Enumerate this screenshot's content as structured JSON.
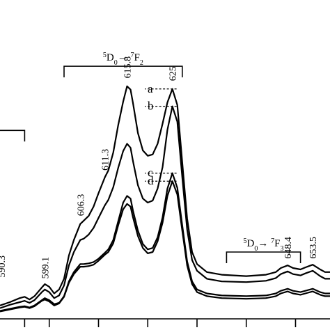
{
  "chart_data": {
    "type": "line",
    "x_axis": {
      "xlim": [
        590,
        657
      ]
    },
    "series": [
      {
        "id": "a",
        "points": [
          [
            590,
            20
          ],
          [
            592,
            25
          ],
          [
            594,
            31
          ],
          [
            595,
            33
          ],
          [
            596,
            29
          ],
          [
            597,
            34
          ],
          [
            598.5,
            47
          ],
          [
            599.1,
            52
          ],
          [
            600,
            48
          ],
          [
            601,
            38
          ],
          [
            602,
            44
          ],
          [
            603,
            60
          ],
          [
            604,
            95
          ],
          [
            605,
            118
          ],
          [
            606.3,
            142
          ],
          [
            607,
            147
          ],
          [
            608,
            154
          ],
          [
            609,
            168
          ],
          [
            610,
            188
          ],
          [
            611.3,
            212
          ],
          [
            612,
            222
          ],
          [
            613,
            249
          ],
          [
            614,
            290
          ],
          [
            615,
            325
          ],
          [
            615.8,
            348
          ],
          [
            616.5,
            343
          ],
          [
            617,
            323
          ],
          [
            618,
            278
          ],
          [
            619,
            252
          ],
          [
            620,
            244
          ],
          [
            621,
            246
          ],
          [
            622,
            262
          ],
          [
            623,
            292
          ],
          [
            624,
            324
          ],
          [
            625,
            344
          ],
          [
            626,
            320
          ],
          [
            627,
            234
          ],
          [
            628,
            150
          ],
          [
            629,
            100
          ],
          [
            630,
            82
          ],
          [
            632,
            70
          ],
          [
            635,
            66
          ],
          [
            640,
            64
          ],
          [
            644,
            66
          ],
          [
            646,
            70
          ],
          [
            647,
            76
          ],
          [
            648.4,
            80
          ],
          [
            649.5,
            76
          ],
          [
            651,
            74
          ],
          [
            652,
            77
          ],
          [
            653.5,
            81
          ],
          [
            655,
            74
          ],
          [
            656,
            70
          ],
          [
            657,
            70
          ]
        ]
      },
      {
        "id": "b",
        "points": [
          [
            590,
            16
          ],
          [
            592,
            21
          ],
          [
            594,
            25
          ],
          [
            595,
            27
          ],
          [
            596,
            24
          ],
          [
            597,
            28
          ],
          [
            598.5,
            40
          ],
          [
            599.1,
            44
          ],
          [
            600,
            40
          ],
          [
            601,
            31
          ],
          [
            602,
            35
          ],
          [
            603,
            50
          ],
          [
            604,
            80
          ],
          [
            605,
            100
          ],
          [
            606.3,
            118
          ],
          [
            607,
            120
          ],
          [
            608,
            126
          ],
          [
            609,
            136
          ],
          [
            610,
            151
          ],
          [
            611.3,
            170
          ],
          [
            612,
            178
          ],
          [
            613,
            197
          ],
          [
            614,
            226
          ],
          [
            615,
            251
          ],
          [
            615.8,
            262
          ],
          [
            616.5,
            256
          ],
          [
            617,
            236
          ],
          [
            618,
            200
          ],
          [
            619,
            180
          ],
          [
            620,
            174
          ],
          [
            621,
            177
          ],
          [
            622,
            195
          ],
          [
            623,
            227
          ],
          [
            624,
            283
          ],
          [
            625,
            318
          ],
          [
            626,
            295
          ],
          [
            627,
            212
          ],
          [
            628,
            134
          ],
          [
            629,
            88
          ],
          [
            630,
            72
          ],
          [
            632,
            60
          ],
          [
            635,
            56
          ],
          [
            640,
            55
          ],
          [
            644,
            57
          ],
          [
            646,
            61
          ],
          [
            647,
            67
          ],
          [
            648.4,
            71
          ],
          [
            649.5,
            67
          ],
          [
            651,
            65
          ],
          [
            652,
            68
          ],
          [
            653.5,
            72
          ],
          [
            655,
            64
          ],
          [
            656,
            60
          ],
          [
            657,
            60
          ]
        ]
      },
      {
        "id": "c",
        "points": [
          [
            590,
            12
          ],
          [
            592,
            15
          ],
          [
            594,
            18
          ],
          [
            595,
            19
          ],
          [
            596,
            17
          ],
          [
            597,
            20
          ],
          [
            598.5,
            28
          ],
          [
            599.1,
            31
          ],
          [
            600,
            28
          ],
          [
            601,
            22
          ],
          [
            602,
            24
          ],
          [
            603,
            34
          ],
          [
            604,
            56
          ],
          [
            605,
            70
          ],
          [
            606.3,
            82
          ],
          [
            607,
            82
          ],
          [
            608,
            83
          ],
          [
            609,
            85
          ],
          [
            610,
            90
          ],
          [
            611.3,
            99
          ],
          [
            612,
            104
          ],
          [
            613,
            118
          ],
          [
            614,
            146
          ],
          [
            615,
            174
          ],
          [
            615.8,
            184
          ],
          [
            616.5,
            180
          ],
          [
            617,
            162
          ],
          [
            618,
            132
          ],
          [
            619,
            112
          ],
          [
            620,
            104
          ],
          [
            621,
            106
          ],
          [
            622,
            122
          ],
          [
            623,
            152
          ],
          [
            624,
            195
          ],
          [
            625,
            218
          ],
          [
            626,
            196
          ],
          [
            627,
            140
          ],
          [
            628,
            86
          ],
          [
            629,
            56
          ],
          [
            630,
            44
          ],
          [
            632,
            38
          ],
          [
            635,
            35
          ],
          [
            640,
            34
          ],
          [
            644,
            35
          ],
          [
            646,
            38
          ],
          [
            647,
            42
          ],
          [
            648.4,
            45
          ],
          [
            649.5,
            42
          ],
          [
            651,
            40
          ],
          [
            652,
            42
          ],
          [
            653.5,
            45
          ],
          [
            655,
            40
          ],
          [
            656,
            38
          ],
          [
            657,
            38
          ]
        ]
      },
      {
        "id": "d",
        "points": [
          [
            590,
            11
          ],
          [
            592,
            14
          ],
          [
            594,
            17
          ],
          [
            595,
            18
          ],
          [
            596,
            16
          ],
          [
            597,
            19
          ],
          [
            598.5,
            27
          ],
          [
            599.1,
            29
          ],
          [
            600,
            26
          ],
          [
            601,
            20
          ],
          [
            602,
            23
          ],
          [
            603,
            33
          ],
          [
            604,
            54
          ],
          [
            605,
            67
          ],
          [
            606.3,
            78
          ],
          [
            607,
            78
          ],
          [
            608,
            79
          ],
          [
            609,
            81
          ],
          [
            610,
            87
          ],
          [
            611.3,
            96
          ],
          [
            612,
            100
          ],
          [
            613,
            113
          ],
          [
            614,
            140
          ],
          [
            615,
            164
          ],
          [
            615.8,
            172
          ],
          [
            616.5,
            168
          ],
          [
            617,
            152
          ],
          [
            618,
            124
          ],
          [
            619,
            106
          ],
          [
            620,
            98
          ],
          [
            621,
            100
          ],
          [
            622,
            116
          ],
          [
            623,
            144
          ],
          [
            624,
            184
          ],
          [
            625,
            206
          ],
          [
            626,
            186
          ],
          [
            627,
            132
          ],
          [
            628,
            80
          ],
          [
            629,
            52
          ],
          [
            630,
            40
          ],
          [
            632,
            34
          ],
          [
            635,
            31
          ],
          [
            640,
            30
          ],
          [
            644,
            31
          ],
          [
            646,
            34
          ],
          [
            647,
            38
          ],
          [
            648.4,
            41
          ],
          [
            649.5,
            38
          ],
          [
            651,
            36
          ],
          [
            652,
            38
          ],
          [
            653.5,
            41
          ],
          [
            655,
            36
          ],
          [
            656,
            34
          ],
          [
            657,
            34
          ]
        ]
      }
    ],
    "peak_labels": [
      {
        "text": "590.3",
        "x": 590.3,
        "y": 62
      },
      {
        "text": "599.1",
        "x": 599.1,
        "y": 60
      },
      {
        "text": "606.3",
        "x": 606.3,
        "y": 154
      },
      {
        "text": "611.3",
        "x": 611.3,
        "y": 222
      },
      {
        "text": "615.8",
        "x": 615.8,
        "y": 360
      },
      {
        "text": "625",
        "x": 625,
        "y": 356
      },
      {
        "text": "648.4",
        "x": 648.4,
        "y": 90
      },
      {
        "text": "653.5",
        "x": 653.5,
        "y": 90
      }
    ],
    "curve_labels": [
      {
        "text": "a",
        "series": "a",
        "x": 625
      },
      {
        "text": "b",
        "series": "b",
        "x": 625
      },
      {
        "text": "c",
        "series": "c",
        "x": 625
      },
      {
        "text": "d",
        "series": "d",
        "x": 625
      }
    ],
    "transitions": [
      {
        "parts": {
          "up": "",
          "d": "",
          "arrow": "→",
          "up2": "",
          "f": ""
        },
        "x_from": 580,
        "x_to": 595,
        "y": 282
      },
      {
        "parts": {
          "up": "5",
          "d": "D",
          "sub": "0",
          "arrow": "→ ",
          "up2": "7",
          "f": "F",
          "sub2": "2"
        },
        "x_from": 603,
        "x_to": 627,
        "y": 378
      },
      {
        "parts": {
          "up": "5",
          "d": "D",
          "sub": "0",
          "arrow": "→ ",
          "up2": "7",
          "f": "F",
          "sub2": "3"
        },
        "x_from": 636,
        "x_to": 651,
        "y": 100
      },
      {
        "parts": {
          "up": "",
          "d": "",
          "arrow": "",
          "up2": "",
          "f": ""
        },
        "x_from": 663,
        "x_to": 672,
        "y": 160
      }
    ],
    "x_ticks": [
      595,
      600,
      610,
      620,
      630,
      640,
      650
    ],
    "x_tick_labels": [],
    "title": "",
    "xlabel": "",
    "ylabel": "",
    "grid": false,
    "legend": "none"
  }
}
